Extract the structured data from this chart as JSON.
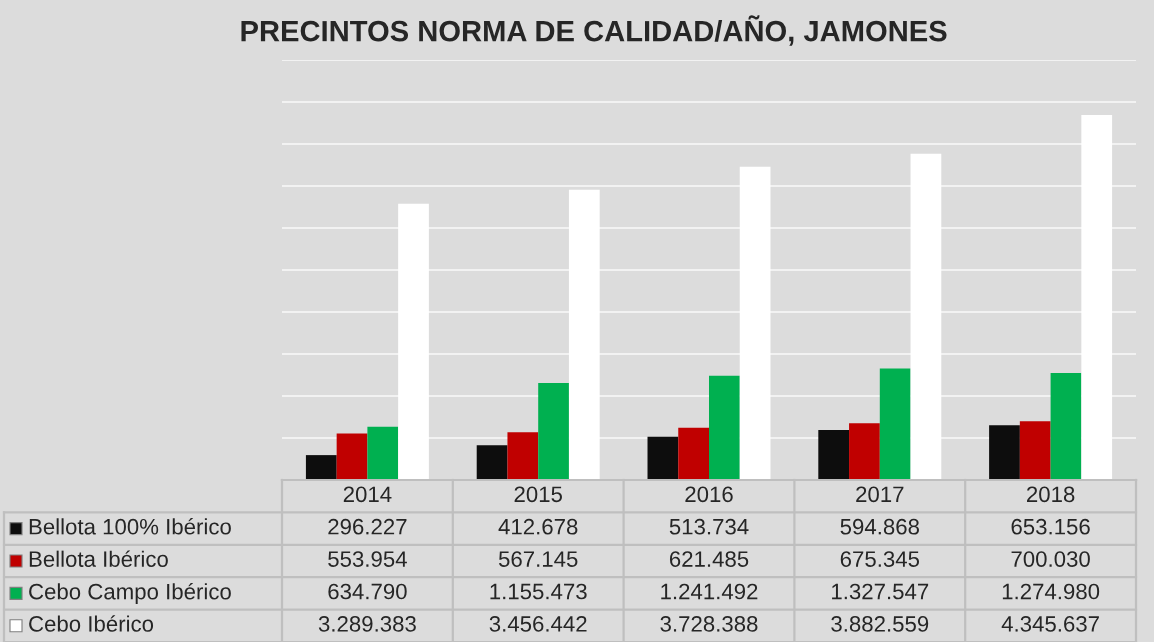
{
  "chart_data": {
    "type": "bar",
    "title": "PRECINTOS NORMA DE CALIDAD/AÑO, JAMONES",
    "categories": [
      "2014",
      "2015",
      "2016",
      "2017",
      "2018"
    ],
    "series": [
      {
        "name": "Bellota 100% Ibérico",
        "color": "#0d0d0d",
        "values": [
          296227,
          412678,
          513734,
          594868,
          653156
        ],
        "value_labels": [
          "296.227",
          "412.678",
          "513.734",
          "594.868",
          "653.156"
        ]
      },
      {
        "name": "Bellota Ibérico",
        "color": "#c00000",
        "values": [
          553954,
          567145,
          621485,
          675345,
          700030
        ],
        "value_labels": [
          "553.954",
          "567.145",
          "621.485",
          "675.345",
          "700.030"
        ]
      },
      {
        "name": "Cebo Campo Ibérico",
        "color": "#00b050",
        "values": [
          634790,
          1155473,
          1241492,
          1327547,
          1274980
        ],
        "value_labels": [
          "634.790",
          "1.155.473",
          "1.241.492",
          "1.327.547",
          "1.274.980"
        ]
      },
      {
        "name": "Cebo Ibérico",
        "color": "#ffffff",
        "values": [
          3289383,
          3456442,
          3728388,
          3882559,
          4345637
        ],
        "value_labels": [
          "3.289.383",
          "3.456.442",
          "3.728.388",
          "3.882.559",
          "4.345.637"
        ]
      }
    ],
    "ylim": [
      0,
      5000000
    ],
    "yticks": [
      {
        "value": 0,
        "label": null
      },
      {
        "value": 500000,
        "label": null
      },
      {
        "value": 1000000,
        "label": null
      },
      {
        "value": 1500000,
        "label": null
      },
      {
        "value": 2000000,
        "label": null
      },
      {
        "value": 2500000,
        "label": null
      },
      {
        "value": 3000000,
        "label": null
      },
      {
        "value": 3500000,
        "label": null
      },
      {
        "value": 4000000,
        "label": null
      },
      {
        "value": 4500000,
        "label": null
      },
      {
        "value": 5000000,
        "label": null
      }
    ],
    "grid": "y",
    "legend": "bottom"
  }
}
